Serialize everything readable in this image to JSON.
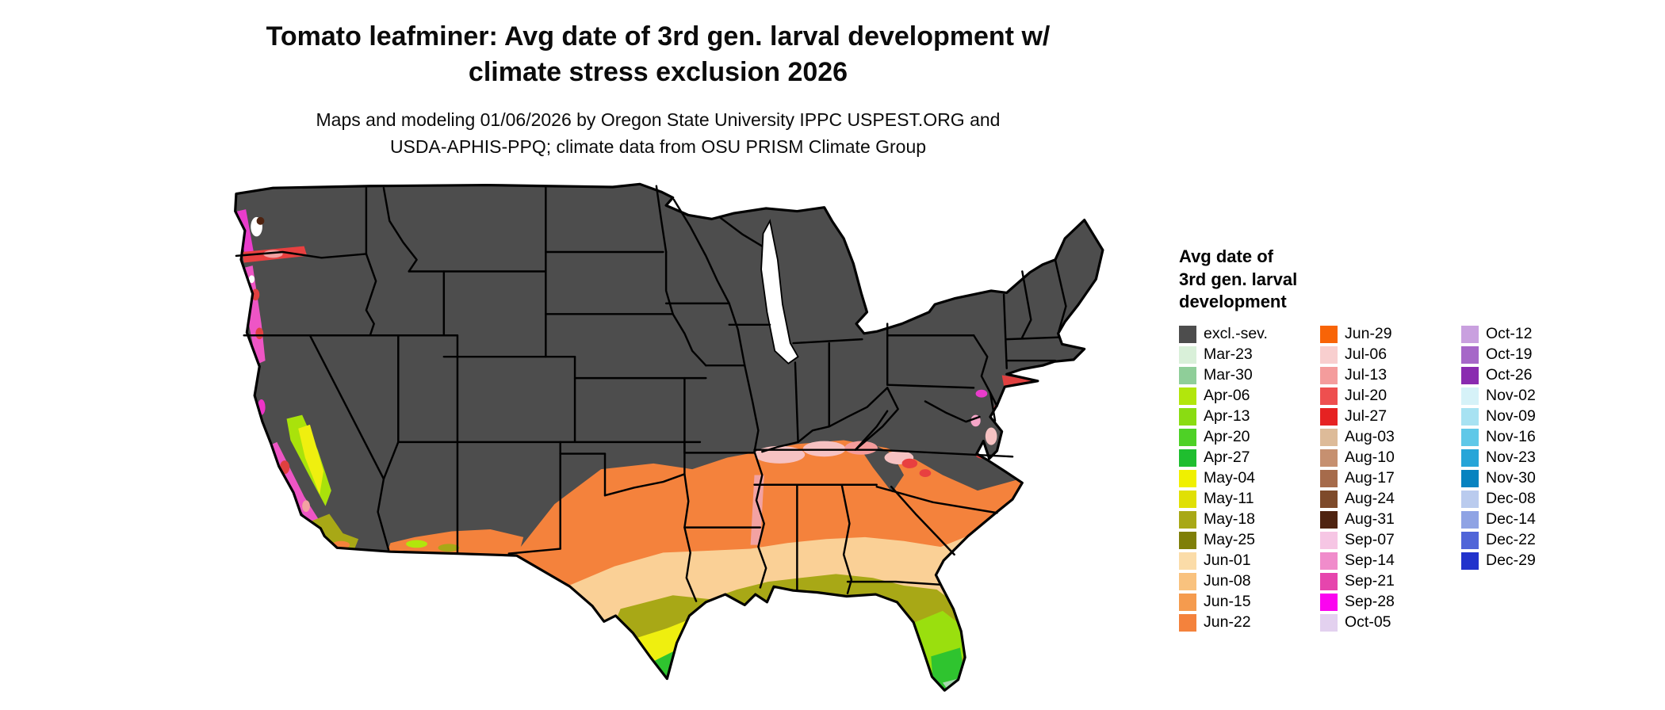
{
  "header": {
    "title_line1": "Tomato leafminer: Avg date of 3rd gen. larval development w/",
    "title_line2": "climate stress exclusion 2026",
    "subtitle_line1": "Maps and modeling 01/06/2026 by Oregon State University IPPC USPEST.ORG and",
    "subtitle_line2": "USDA-APHIS-PPQ; climate data from OSU PRISM Climate Group"
  },
  "legend": {
    "title_line1": "Avg date of",
    "title_line2": "3rd gen. larval",
    "title_line3": "development",
    "columns": [
      [
        {
          "label": "excl.-sev.",
          "color": "#4D4D4D"
        },
        {
          "label": "Mar-23",
          "color": "#D9F0D9"
        },
        {
          "label": "Mar-30",
          "color": "#8FCE99"
        },
        {
          "label": "Apr-06",
          "color": "#B2E60C"
        },
        {
          "label": "Apr-13",
          "color": "#8ADC12"
        },
        {
          "label": "Apr-20",
          "color": "#4ED126"
        },
        {
          "label": "Apr-27",
          "color": "#1FBE2F"
        },
        {
          "label": "May-04",
          "color": "#F0F000"
        },
        {
          "label": "May-11",
          "color": "#E0E004"
        },
        {
          "label": "May-18",
          "color": "#A8A816"
        },
        {
          "label": "May-25",
          "color": "#7F7F08"
        },
        {
          "label": "Jun-01",
          "color": "#FBDCA8"
        },
        {
          "label": "Jun-08",
          "color": "#F9C27E"
        },
        {
          "label": "Jun-15",
          "color": "#F59B4E"
        },
        {
          "label": "Jun-22",
          "color": "#F4823C"
        }
      ],
      [
        {
          "label": "Jun-29",
          "color": "#F86407"
        },
        {
          "label": "Jul-06",
          "color": "#F8CFCF"
        },
        {
          "label": "Jul-13",
          "color": "#F49C9C"
        },
        {
          "label": "Jul-20",
          "color": "#EE4F4F"
        },
        {
          "label": "Jul-27",
          "color": "#E62222"
        },
        {
          "label": "Aug-03",
          "color": "#DDBB99"
        },
        {
          "label": "Aug-10",
          "color": "#C69070"
        },
        {
          "label": "Aug-17",
          "color": "#A66B4B"
        },
        {
          "label": "Aug-24",
          "color": "#7E4A2A"
        },
        {
          "label": "Aug-31",
          "color": "#4F2310"
        },
        {
          "label": "Sep-07",
          "color": "#F6C6E4"
        },
        {
          "label": "Sep-14",
          "color": "#F08CCB"
        },
        {
          "label": "Sep-21",
          "color": "#E645AD"
        },
        {
          "label": "Sep-28",
          "color": "#FB04F0"
        },
        {
          "label": "Oct-05",
          "color": "#E3D1EF"
        }
      ],
      [
        {
          "label": "Oct-12",
          "color": "#C9A0DF"
        },
        {
          "label": "Oct-19",
          "color": "#A667C8"
        },
        {
          "label": "Oct-26",
          "color": "#8A2BB0"
        },
        {
          "label": "Nov-02",
          "color": "#D6F2F8"
        },
        {
          "label": "Nov-09",
          "color": "#A7E2F2"
        },
        {
          "label": "Nov-16",
          "color": "#5FC8E8"
        },
        {
          "label": "Nov-23",
          "color": "#27A5D8"
        },
        {
          "label": "Nov-30",
          "color": "#0883C0"
        },
        {
          "label": "Dec-08",
          "color": "#BACBEE"
        },
        {
          "label": "Dec-14",
          "color": "#8FA3E4"
        },
        {
          "label": "Dec-22",
          "color": "#5065D8"
        },
        {
          "label": "Dec-29",
          "color": "#2233CC"
        }
      ]
    ]
  },
  "map": {
    "base_color": "#4D4D4D",
    "outline_color": "#000000",
    "background_color": "#FFFFFF"
  }
}
